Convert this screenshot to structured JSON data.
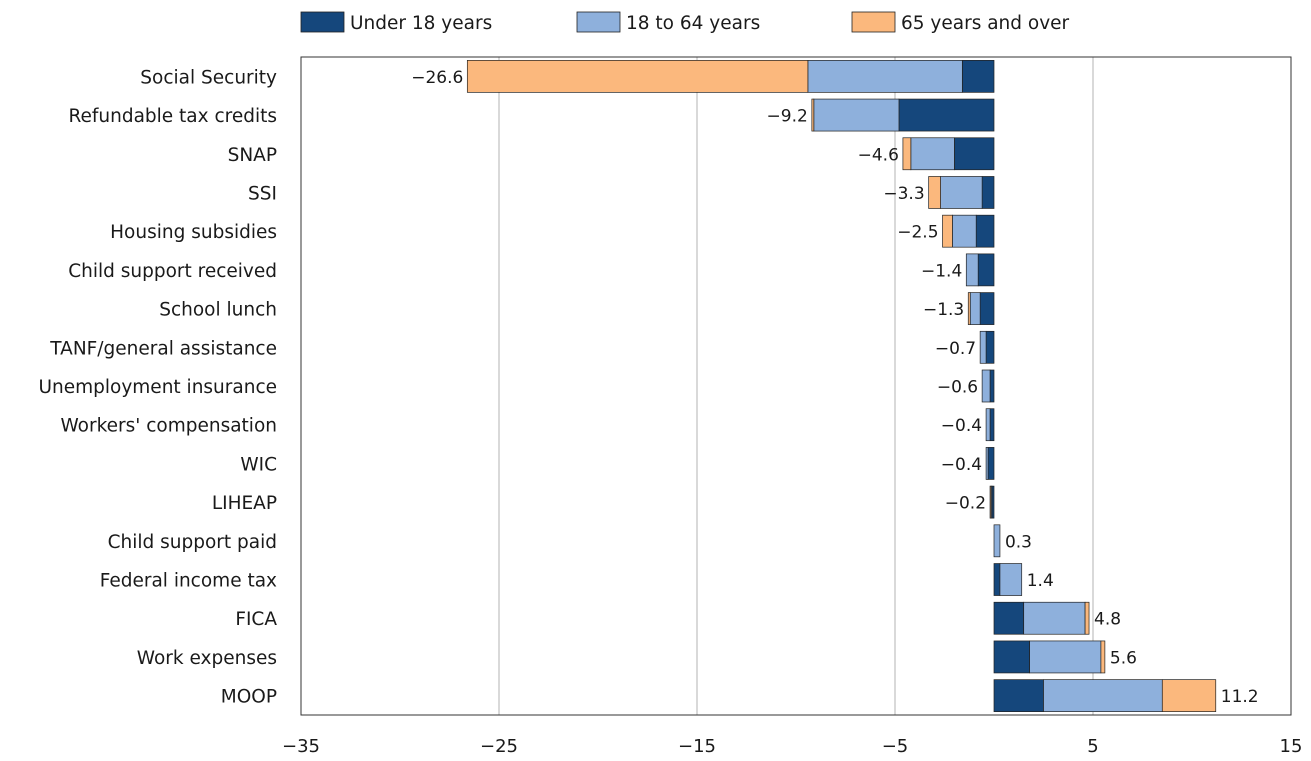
{
  "chart_data": {
    "type": "bar",
    "orientation": "horizontal",
    "stacked": true,
    "title": "",
    "xlabel": "",
    "ylabel": "",
    "xlim": [
      -35,
      15
    ],
    "xticks": [
      -35,
      -25,
      -15,
      -5,
      5,
      15
    ],
    "xtick_labels": [
      "−35",
      "−25",
      "−15",
      "−5",
      "5",
      "15"
    ],
    "grid": "vertical",
    "legend_position": "top",
    "categories": [
      "Social Security",
      "Refundable tax credits",
      "SNAP",
      "SSI",
      "Housing subsidies",
      "Child support received",
      "School lunch",
      "TANF/general assistance",
      "Unemployment insurance",
      "Workers' compensation",
      "WIC",
      "LIHEAP",
      "Child support paid",
      "Federal income tax",
      "FICA",
      "Work expenses",
      "MOOP"
    ],
    "series": [
      {
        "name": "Under 18 years",
        "color": "#15477c",
        "values": [
          -1.6,
          -4.8,
          -2.0,
          -0.6,
          -0.9,
          -0.8,
          -0.7,
          -0.4,
          -0.2,
          -0.2,
          -0.3,
          -0.1,
          0.0,
          0.3,
          1.5,
          1.8,
          2.5
        ]
      },
      {
        "name": "18 to 64 years",
        "color": "#8eb0dc",
        "values": [
          -7.8,
          -4.3,
          -2.2,
          -2.1,
          -1.2,
          -0.6,
          -0.5,
          -0.3,
          -0.4,
          -0.2,
          -0.1,
          -0.05,
          0.3,
          1.1,
          3.1,
          3.6,
          6.0
        ]
      },
      {
        "name": "65 years and over",
        "color": "#fbb87d",
        "values": [
          -17.2,
          -0.1,
          -0.4,
          -0.6,
          -0.5,
          0.0,
          -0.1,
          0.0,
          0.0,
          0.0,
          0.0,
          -0.05,
          0.0,
          0.0,
          0.2,
          0.2,
          2.7
        ]
      }
    ],
    "totals": [
      -26.6,
      -9.2,
      -4.6,
      -3.3,
      -2.5,
      -1.4,
      -1.3,
      -0.7,
      -0.6,
      -0.4,
      -0.4,
      -0.2,
      0.3,
      1.4,
      4.8,
      5.6,
      11.2
    ],
    "total_labels": [
      "−26.6",
      "−9.2",
      "−4.6",
      "−3.3",
      "−2.5",
      "−1.4",
      "−1.3",
      "−0.7",
      "−0.6",
      "−0.4",
      "−0.4",
      "−0.2",
      "0.3",
      "1.4",
      "4.8",
      "5.6",
      "11.2"
    ]
  }
}
